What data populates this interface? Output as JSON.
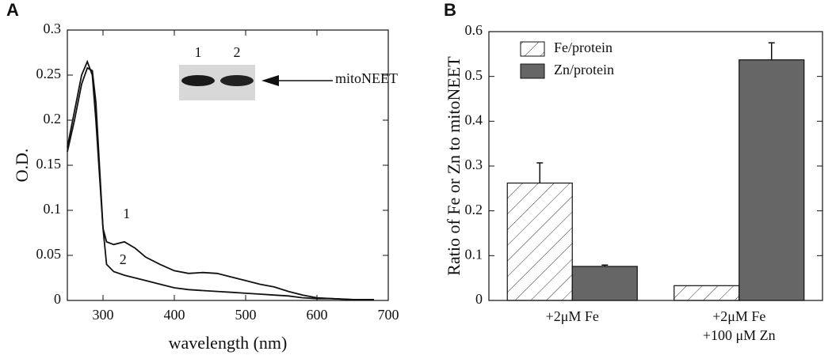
{
  "chart_data": [
    {
      "type": "line",
      "panel": "A",
      "xlabel": "wavelength (nm)",
      "ylabel": "O.D.",
      "x": [
        250,
        260,
        270,
        278,
        285,
        290,
        295,
        300,
        305,
        315,
        330,
        345,
        360,
        380,
        400,
        420,
        440,
        460,
        480,
        500,
        520,
        540,
        560,
        580,
        600,
        620,
        650,
        680
      ],
      "series": [
        {
          "name": "1",
          "color": "#111111",
          "values": [
            0.17,
            0.21,
            0.25,
            0.265,
            0.25,
            0.2,
            0.14,
            0.08,
            0.065,
            0.062,
            0.065,
            0.058,
            0.048,
            0.04,
            0.033,
            0.03,
            0.031,
            0.03,
            0.026,
            0.022,
            0.018,
            0.015,
            0.01,
            0.006,
            0.003,
            0.002,
            0.001,
            0.001
          ]
        },
        {
          "name": "2",
          "color": "#111111",
          "values": [
            0.165,
            0.2,
            0.24,
            0.258,
            0.255,
            0.22,
            0.15,
            0.08,
            0.04,
            0.032,
            0.028,
            0.025,
            0.022,
            0.018,
            0.014,
            0.012,
            0.011,
            0.01,
            0.009,
            0.008,
            0.007,
            0.006,
            0.005,
            0.003,
            0.002,
            0.002,
            0.001,
            0.001
          ]
        }
      ],
      "xlim": [
        250,
        700
      ],
      "xticks": [
        300,
        400,
        500,
        600,
        700
      ],
      "ylim": [
        0,
        0.3
      ],
      "yticks": [
        0,
        0.05,
        0.1,
        0.15,
        0.2,
        0.25,
        0.3
      ],
      "inset_lanes": [
        "1",
        "2"
      ],
      "inset_target": "mitoNEET"
    },
    {
      "type": "bar",
      "panel": "B",
      "ylabel": "Ratio of Fe or Zn to mitoNEET",
      "categories": [
        "+2μM Fe",
        "+2μM Fe\n+100 μM Zn"
      ],
      "series": [
        {
          "name": "Fe/protein",
          "color": "#ffffff",
          "hatch": true,
          "values": [
            0.262,
            0.033
          ],
          "errors": [
            0.045,
            null
          ]
        },
        {
          "name": "Zn/protein",
          "color": "#666666",
          "hatch": false,
          "values": [
            0.076,
            0.537
          ],
          "errors": [
            0.003,
            0.038
          ]
        }
      ],
      "ylim": [
        0,
        0.6
      ],
      "yticks": [
        0,
        0.1,
        0.2,
        0.3,
        0.4,
        0.5,
        0.6
      ],
      "legend": "upper-left"
    }
  ]
}
